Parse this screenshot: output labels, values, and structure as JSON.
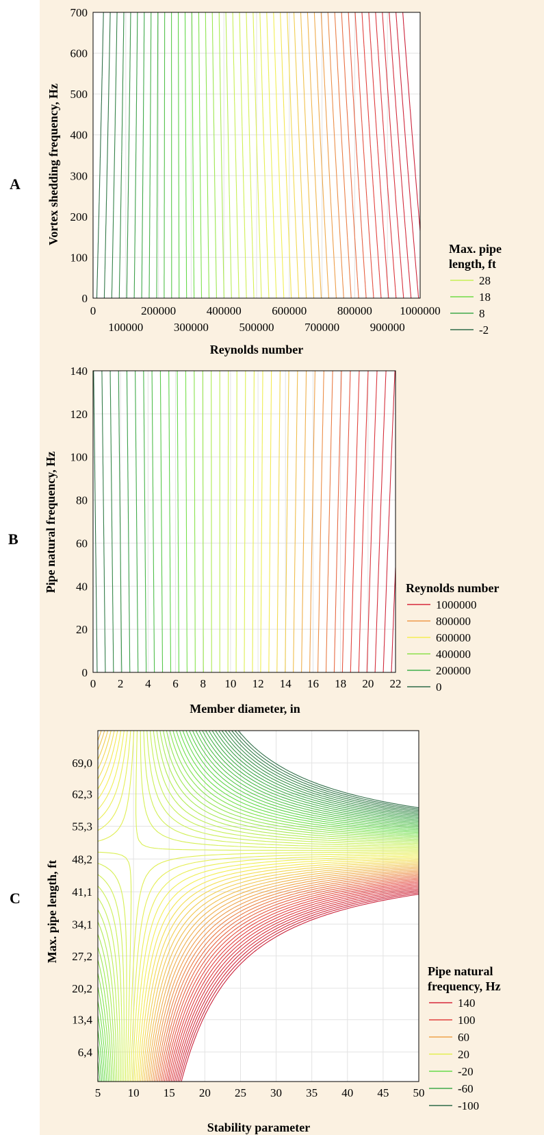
{
  "chart_data": [
    {
      "panel_label": "A",
      "type": "contour",
      "xlabel": "Reynolds number",
      "ylabel": "Vortex shedding frequency, Hz",
      "xlim": [
        0,
        1000000
      ],
      "ylim": [
        0,
        700
      ],
      "x_ticks_row1": [
        "0",
        "200000",
        "400000",
        "600000",
        "800000",
        "1000000"
      ],
      "x_ticks_row2": [
        "100000",
        "300000",
        "500000",
        "700000",
        "900000"
      ],
      "y_ticks": [
        "0",
        "100",
        "200",
        "300",
        "400",
        "500",
        "600",
        "700"
      ],
      "legend": {
        "title_lines": [
          "Max. pipe",
          "length, ft"
        ],
        "entries": [
          {
            "label": "28",
            "color": "#c6ef55"
          },
          {
            "label": "18",
            "color": "#6fdc46"
          },
          {
            "label": "8",
            "color": "#3fa94a"
          },
          {
            "label": "-2",
            "color": "#2e6b48"
          }
        ]
      },
      "z_range": [
        -2,
        32
      ],
      "level_count": 45,
      "grid": true
    },
    {
      "panel_label": "B",
      "type": "contour",
      "xlabel": "Member diameter, in",
      "ylabel": "Pipe natural frequency, Hz",
      "xlim": [
        0,
        22
      ],
      "ylim": [
        0,
        140
      ],
      "x_ticks": [
        "0",
        "2",
        "4",
        "6",
        "8",
        "10",
        "12",
        "14",
        "16",
        "18",
        "20",
        "22"
      ],
      "y_ticks": [
        "0",
        "20",
        "40",
        "60",
        "80",
        "100",
        "120",
        "140"
      ],
      "legend": {
        "title_lines": [
          "Reynolds number"
        ],
        "entries": [
          {
            "label": "1000000",
            "color": "#d8283a"
          },
          {
            "label": "800000",
            "color": "#ef9a4a"
          },
          {
            "label": "600000",
            "color": "#f4ee52"
          },
          {
            "label": "400000",
            "color": "#8ddf4c"
          },
          {
            "label": "200000",
            "color": "#3fb04c"
          },
          {
            "label": "0",
            "color": "#2e6b48"
          }
        ]
      },
      "z_range": [
        0,
        1000000
      ],
      "level_count": 37,
      "grid": true
    },
    {
      "panel_label": "C",
      "type": "contour",
      "xlabel": "Stability parameter",
      "ylabel": "Max. pipe length, ft",
      "xlim": [
        5,
        50
      ],
      "ylim": [
        0,
        76
      ],
      "x_ticks": [
        "5",
        "10",
        "15",
        "20",
        "25",
        "30",
        "35",
        "40",
        "45",
        "50"
      ],
      "y_ticks": [
        "6,4",
        "13,4",
        "20,2",
        "27,2",
        "34,1",
        "41,1",
        "48,2",
        "55,3",
        "62,3",
        "69,0"
      ],
      "y_tick_values": [
        6.4,
        13.4,
        20.2,
        27.2,
        34.1,
        41.1,
        48.2,
        55.3,
        62.3,
        69.0
      ],
      "legend": {
        "title_lines": [
          "Pipe natural",
          "frequency, Hz"
        ],
        "entries": [
          {
            "label": "140",
            "color": "#d8283a"
          },
          {
            "label": "100",
            "color": "#e2403e"
          },
          {
            "label": "60",
            "color": "#eea24a"
          },
          {
            "label": "20",
            "color": "#e3ef52"
          },
          {
            "label": "-20",
            "color": "#66dc4a"
          },
          {
            "label": "-60",
            "color": "#3fa94a"
          },
          {
            "label": "-100",
            "color": "#2e6b48"
          }
        ]
      },
      "grid": true
    }
  ]
}
